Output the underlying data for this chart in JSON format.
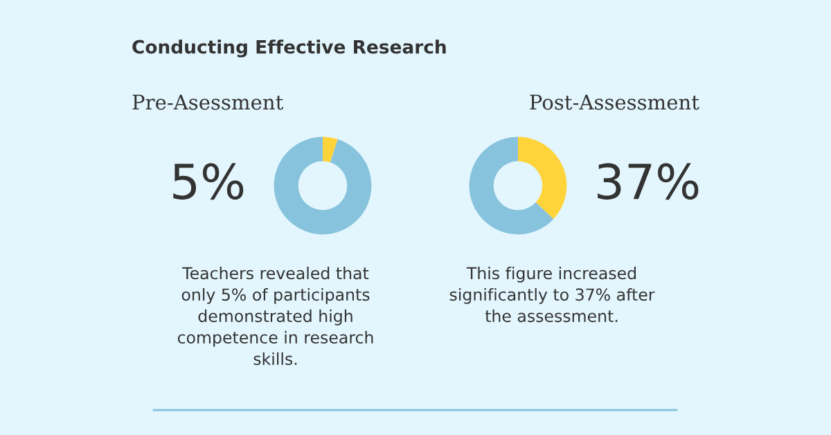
{
  "chart_data": [
    {
      "type": "donut",
      "title": "Conducting Effective Research",
      "subtitle": "Pre-Asessment",
      "categories": [
        null,
        null
      ],
      "values": [
        5,
        95
      ],
      "colors": [
        "#ffd43b",
        "#88c3dd"
      ],
      "legend": false,
      "annotations": [
        "5%",
        "Teachers revealed that\nonly 5% of participants\ndemonstrated high\ncompetence in research\nskills."
      ]
    },
    {
      "type": "donut",
      "subtitle": "Post-Assessment",
      "categories": [
        null,
        null
      ],
      "values": [
        37,
        63
      ],
      "colors": [
        "#ffd43b",
        "#88c3dd"
      ],
      "legend": false,
      "annotations": [
        "37%",
        "This figure increased\nsignificantly to 37% after\nthe assessment."
      ]
    }
  ]
}
